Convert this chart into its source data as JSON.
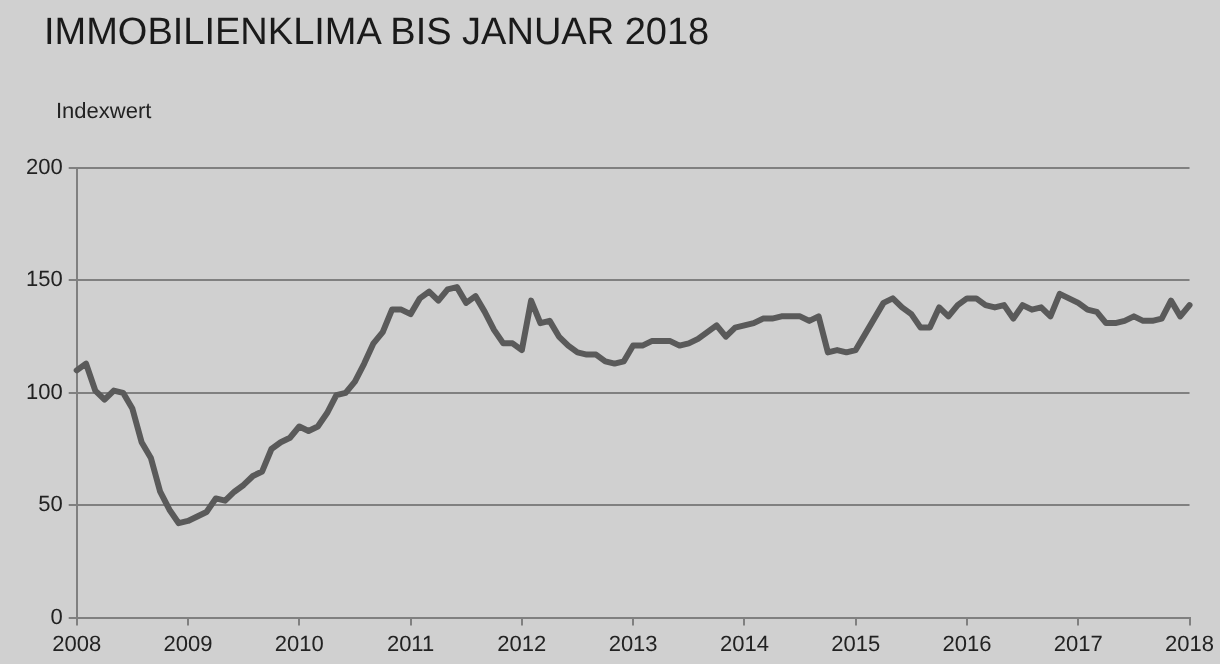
{
  "chart_data": {
    "type": "line",
    "title": "IMMOBILIENKLIMA BIS JANUAR 2018",
    "ylabel": "Indexwert",
    "x": [
      "2008-01",
      "2008-02",
      "2008-03",
      "2008-04",
      "2008-05",
      "2008-06",
      "2008-07",
      "2008-08",
      "2008-09",
      "2008-10",
      "2008-11",
      "2008-12",
      "2009-01",
      "2009-02",
      "2009-03",
      "2009-04",
      "2009-05",
      "2009-06",
      "2009-07",
      "2009-08",
      "2009-09",
      "2009-10",
      "2009-11",
      "2009-12",
      "2010-01",
      "2010-02",
      "2010-03",
      "2010-04",
      "2010-05",
      "2010-06",
      "2010-07",
      "2010-08",
      "2010-09",
      "2010-10",
      "2010-11",
      "2010-12",
      "2011-01",
      "2011-02",
      "2011-03",
      "2011-04",
      "2011-05",
      "2011-06",
      "2011-07",
      "2011-08",
      "2011-09",
      "2011-10",
      "2011-11",
      "2011-12",
      "2012-01",
      "2012-02",
      "2012-03",
      "2012-04",
      "2012-05",
      "2012-06",
      "2012-07",
      "2012-08",
      "2012-09",
      "2012-10",
      "2012-11",
      "2012-12",
      "2013-01",
      "2013-02",
      "2013-03",
      "2013-04",
      "2013-05",
      "2013-06",
      "2013-07",
      "2013-08",
      "2013-09",
      "2013-10",
      "2013-11",
      "2013-12",
      "2014-01",
      "2014-02",
      "2014-03",
      "2014-04",
      "2014-05",
      "2014-06",
      "2014-07",
      "2014-08",
      "2014-09",
      "2014-10",
      "2014-11",
      "2014-12",
      "2015-01",
      "2015-02",
      "2015-03",
      "2015-04",
      "2015-05",
      "2015-06",
      "2015-07",
      "2015-08",
      "2015-09",
      "2015-10",
      "2015-11",
      "2015-12",
      "2016-01",
      "2016-02",
      "2016-03",
      "2016-04",
      "2016-05",
      "2016-06",
      "2016-07",
      "2016-08",
      "2016-09",
      "2016-10",
      "2016-11",
      "2016-12",
      "2017-01",
      "2017-02",
      "2017-03",
      "2017-04",
      "2017-05",
      "2017-06",
      "2017-07",
      "2017-08",
      "2017-09",
      "2017-10",
      "2017-11",
      "2017-12",
      "2018-01"
    ],
    "series": [
      {
        "color": "#5a5a5a",
        "values": [
          110,
          113,
          101,
          97,
          101,
          100,
          93,
          78,
          71,
          56,
          48,
          42,
          43,
          45,
          47,
          53,
          52,
          56,
          59,
          63,
          65,
          75,
          78,
          80,
          85,
          83,
          85,
          91,
          99,
          100,
          105,
          113,
          122,
          127,
          137,
          137,
          135,
          142,
          145,
          141,
          146,
          147,
          140,
          143,
          136,
          128,
          122,
          122,
          119,
          141,
          131,
          132,
          125,
          121,
          118,
          117,
          117,
          114,
          113,
          114,
          121,
          121,
          123,
          123,
          123,
          121,
          122,
          124,
          127,
          130,
          125,
          129,
          130,
          131,
          133,
          133,
          134,
          134,
          134,
          132,
          134,
          118,
          119,
          118,
          119,
          126,
          133,
          140,
          142,
          138,
          135,
          129,
          129,
          138,
          134,
          139,
          142,
          142,
          139,
          138,
          139,
          133,
          139,
          137,
          138,
          134,
          144,
          142,
          140,
          137,
          136,
          131,
          131,
          132,
          134,
          132,
          132,
          133,
          141,
          134,
          139
        ]
      }
    ],
    "xlim": [
      "2008",
      "2018"
    ],
    "xticks": [
      "2008",
      "2009",
      "2010",
      "2011",
      "2012",
      "2013",
      "2014",
      "2015",
      "2016",
      "2017",
      "2018"
    ],
    "ylim": [
      0,
      200
    ],
    "yticks": [
      0,
      50,
      100,
      150,
      200
    ],
    "grid": "y",
    "legend": false,
    "marker": "none",
    "line_style": "solid"
  }
}
